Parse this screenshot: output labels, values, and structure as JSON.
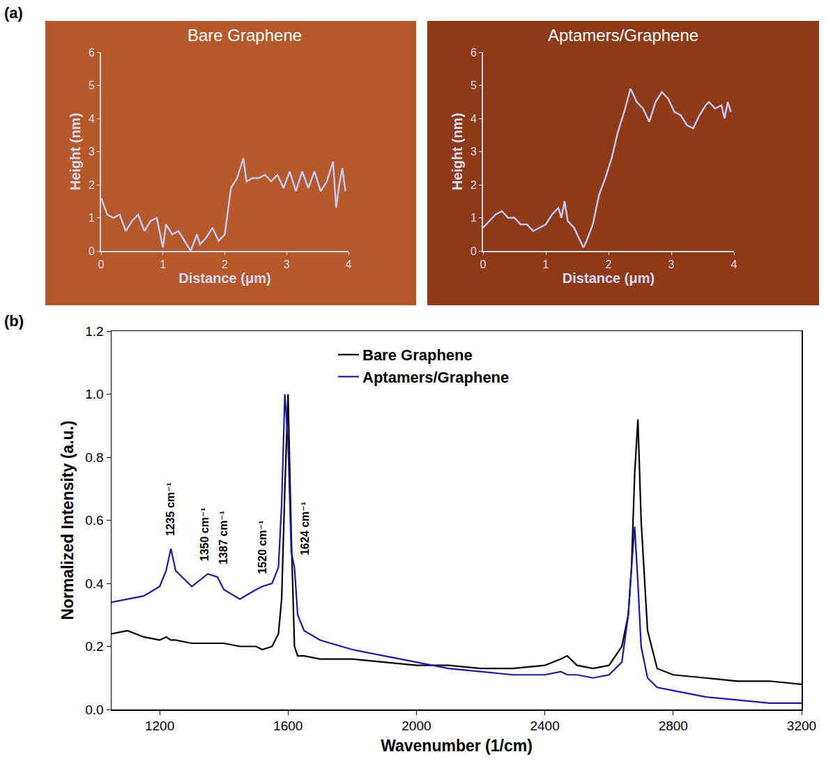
{
  "chart_data": [
    {
      "panel": "(a)",
      "type": "line",
      "title": "Bare Graphene",
      "x_label": "Distance (μm)",
      "y_label": "Height (nm)",
      "color": "#c8c8f0",
      "x": [
        0,
        0.1,
        0.2,
        0.3,
        0.4,
        0.5,
        0.6,
        0.7,
        0.8,
        0.9,
        1.0,
        1.05,
        1.15,
        1.25,
        1.35,
        1.45,
        1.55,
        1.6,
        1.7,
        1.8,
        1.9,
        2.0,
        2.1,
        2.2,
        2.3,
        2.35,
        2.45,
        2.55,
        2.65,
        2.75,
        2.85,
        2.95,
        3.05,
        3.15,
        3.25,
        3.35,
        3.45,
        3.55,
        3.65,
        3.75,
        3.8,
        3.85,
        3.9,
        3.95
      ],
      "values": [
        1.6,
        1.1,
        1.0,
        1.1,
        0.6,
        0.9,
        1.1,
        0.6,
        0.9,
        1.0,
        0.1,
        0.8,
        0.5,
        0.6,
        0.3,
        0.0,
        0.5,
        0.2,
        0.4,
        0.7,
        0.3,
        0.5,
        1.9,
        2.2,
        2.8,
        2.1,
        2.2,
        2.2,
        2.3,
        2.1,
        2.3,
        1.9,
        2.4,
        1.8,
        2.4,
        1.9,
        2.4,
        1.8,
        2.1,
        2.7,
        1.3,
        2.0,
        2.5,
        1.8
      ],
      "xlim": [
        0,
        4
      ],
      "xticks": [
        0,
        1,
        2,
        3,
        4
      ],
      "ylim": [
        0,
        6
      ],
      "yticks": [
        0,
        1,
        2,
        3,
        4,
        5,
        6
      ]
    },
    {
      "type": "line",
      "title": "Aptamers/Graphene",
      "x_label": "Distance (μm)",
      "y_label": "Height (nm)",
      "color": "#c8c8f0",
      "x": [
        0,
        0.1,
        0.2,
        0.3,
        0.4,
        0.5,
        0.6,
        0.7,
        0.8,
        0.9,
        1.0,
        1.1,
        1.2,
        1.25,
        1.3,
        1.35,
        1.45,
        1.55,
        1.6,
        1.65,
        1.75,
        1.85,
        1.95,
        2.05,
        2.15,
        2.25,
        2.35,
        2.45,
        2.55,
        2.65,
        2.75,
        2.85,
        2.95,
        3.05,
        3.15,
        3.25,
        3.35,
        3.45,
        3.55,
        3.6,
        3.7,
        3.8,
        3.85,
        3.9,
        3.95
      ],
      "values": [
        0.7,
        0.9,
        1.1,
        1.2,
        1.0,
        1.0,
        0.8,
        0.8,
        0.6,
        0.7,
        0.8,
        1.1,
        1.3,
        1.0,
        1.5,
        0.9,
        0.7,
        0.3,
        0.1,
        0.3,
        0.8,
        1.7,
        2.2,
        2.8,
        3.6,
        4.2,
        4.9,
        4.5,
        4.3,
        3.9,
        4.5,
        4.8,
        4.6,
        4.2,
        4.1,
        3.8,
        3.7,
        4.1,
        4.4,
        4.5,
        4.3,
        4.4,
        4.0,
        4.5,
        4.2
      ],
      "xlim": [
        0,
        4
      ],
      "xticks": [
        0,
        1,
        2,
        3,
        4
      ],
      "ylim": [
        0,
        6
      ],
      "yticks": [
        0,
        1,
        2,
        3,
        4,
        5,
        6
      ]
    },
    {
      "panel": "(b)",
      "type": "line",
      "x_label": "Wavenumber (1/cm)",
      "y_label": "Normalized Intensity (a.u.)",
      "legend": "upper center",
      "x": [
        1050,
        1100,
        1150,
        1200,
        1220,
        1235,
        1250,
        1300,
        1350,
        1380,
        1400,
        1450,
        1500,
        1520,
        1550,
        1570,
        1580,
        1590,
        1600,
        1610,
        1620,
        1630,
        1650,
        1700,
        1800,
        1900,
        2000,
        2100,
        2200,
        2300,
        2400,
        2450,
        2470,
        2500,
        2550,
        2600,
        2640,
        2660,
        2670,
        2680,
        2690,
        2700,
        2720,
        2750,
        2800,
        2900,
        3000,
        3100,
        3200
      ],
      "series": [
        {
          "name": "Bare Graphene",
          "color": "#000000",
          "values": [
            0.24,
            0.25,
            0.23,
            0.22,
            0.23,
            0.22,
            0.22,
            0.21,
            0.21,
            0.21,
            0.21,
            0.2,
            0.2,
            0.19,
            0.2,
            0.24,
            0.35,
            0.7,
            1.0,
            0.55,
            0.2,
            0.17,
            0.17,
            0.16,
            0.16,
            0.15,
            0.14,
            0.14,
            0.13,
            0.13,
            0.14,
            0.16,
            0.17,
            0.14,
            0.13,
            0.14,
            0.2,
            0.3,
            0.45,
            0.75,
            0.92,
            0.6,
            0.25,
            0.13,
            0.11,
            0.1,
            0.09,
            0.09,
            0.08
          ]
        },
        {
          "name": "Aptamers/Graphene",
          "color": "#1a1aa0",
          "values": [
            0.34,
            0.35,
            0.36,
            0.39,
            0.44,
            0.51,
            0.44,
            0.39,
            0.43,
            0.42,
            0.38,
            0.35,
            0.38,
            0.39,
            0.4,
            0.45,
            0.65,
            1.0,
            0.85,
            0.5,
            0.45,
            0.3,
            0.25,
            0.22,
            0.19,
            0.17,
            0.15,
            0.13,
            0.12,
            0.11,
            0.11,
            0.12,
            0.11,
            0.11,
            0.1,
            0.11,
            0.15,
            0.3,
            0.45,
            0.58,
            0.4,
            0.2,
            0.1,
            0.07,
            0.06,
            0.04,
            0.03,
            0.02,
            0.02
          ]
        }
      ],
      "annotations": [
        {
          "text": "1235 cm⁻¹",
          "x": 1235
        },
        {
          "text": "1350 cm⁻¹",
          "x": 1350
        },
        {
          "text": "1387 cm⁻¹",
          "x": 1387
        },
        {
          "text": "1520 cm⁻¹",
          "x": 1520
        },
        {
          "text": "1624 cm⁻¹",
          "x": 1624
        }
      ],
      "xlim": [
        1050,
        3200
      ],
      "xticks": [
        1200,
        1600,
        2000,
        2400,
        2800,
        3200
      ],
      "ylim": [
        0,
        1.2
      ],
      "yticks": [
        {
          "value": 0,
          "label": "0.0"
        },
        {
          "value": 0.2,
          "label": "0.2"
        },
        {
          "value": 0.4,
          "label": "0.4"
        },
        {
          "value": 0.6,
          "label": "0.6"
        },
        {
          "value": 0.8,
          "label": "0.8"
        },
        {
          "value": 1,
          "label": "1.0"
        },
        {
          "value": 1.2,
          "label": "1.2"
        }
      ]
    }
  ]
}
